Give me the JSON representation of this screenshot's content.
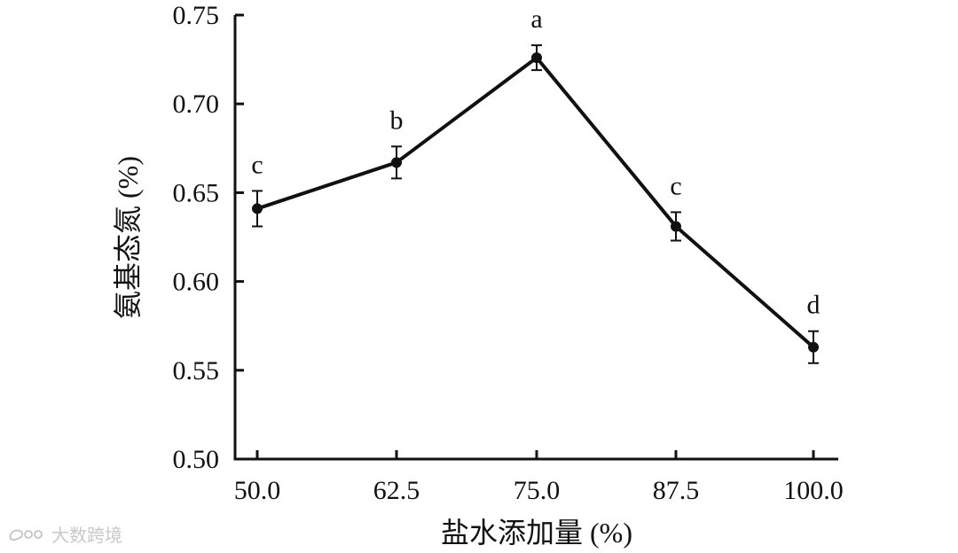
{
  "chart_data": {
    "type": "line",
    "title": "",
    "xlabel": "盐水添加量 (%)",
    "ylabel": "氨基态氮 (%)",
    "x": [
      50.0,
      62.5,
      75.0,
      87.5,
      100.0
    ],
    "x_tick_labels": [
      "50.0",
      "62.5",
      "75.0",
      "87.5",
      "100.0"
    ],
    "y_ticks": [
      0.5,
      0.55,
      0.6,
      0.65,
      0.7,
      0.75
    ],
    "y_tick_labels": [
      "0.50",
      "0.55",
      "0.60",
      "0.65",
      "0.70",
      "0.75"
    ],
    "ylim": [
      0.5,
      0.75
    ],
    "series": [
      {
        "values": [
          0.641,
          0.667,
          0.726,
          0.631,
          0.563
        ],
        "error": [
          0.01,
          0.009,
          0.007,
          0.008,
          0.009
        ],
        "significance_labels": [
          "c",
          "b",
          "a",
          "c",
          "d"
        ]
      }
    ],
    "grid": false,
    "color": "#111111"
  },
  "watermark": {
    "text": "大数跨境",
    "icon": "weibo-icon"
  }
}
